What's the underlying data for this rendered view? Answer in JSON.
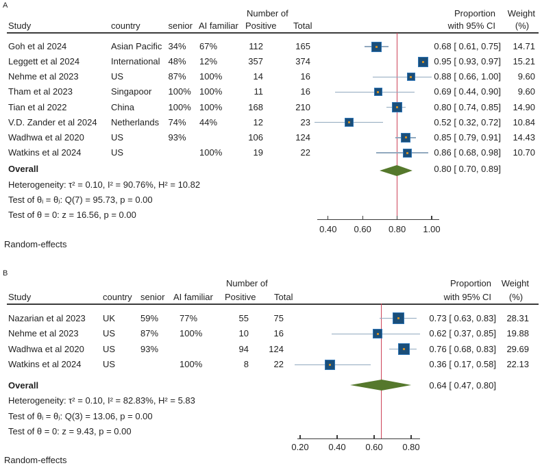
{
  "figure": {
    "panel_a_label": "A",
    "panel_b_label": "B"
  },
  "colors": {
    "marker_fill": "#1a4e79",
    "marker_border": "#2e75b6",
    "marker_dot": "#cc8f2b",
    "ci_line": "#90a8be",
    "ref_line": "#cc4257",
    "diamond": "#55782c",
    "rule": "#3a3a3a",
    "text": "#1f1f1f"
  },
  "chart_data": [
    {
      "type": "scatter",
      "panel": "A",
      "title": "",
      "xlabel": "",
      "ylabel": "",
      "columns": {
        "study": "Study",
        "country": "country",
        "senior": "senior",
        "ai_familiar": "AI familiar",
        "number_of": "Number of",
        "positive": "Positive",
        "total": "Total",
        "proportion_line1": "Proportion",
        "proportion_line2": "with 95% CI",
        "weight_line1": "Weight",
        "weight_line2": "(%)"
      },
      "studies": [
        {
          "study": "Goh et al 2024",
          "country": "Asian Pacific",
          "senior": "34%",
          "ai_familiar": "67%",
          "positive": 112,
          "total": 165,
          "estimate": 0.68,
          "ci_low": 0.61,
          "ci_high": 0.75,
          "ci_label": "0.68 [ 0.61, 0.75]",
          "weight": "14.71",
          "marker_size": 15
        },
        {
          "study": "Leggett et al 2024",
          "country": "International",
          "senior": "48%",
          "ai_familiar": "12%",
          "positive": 357,
          "total": 374,
          "estimate": 0.95,
          "ci_low": 0.93,
          "ci_high": 0.97,
          "ci_label": "0.95 [ 0.93, 0.97]",
          "weight": "15.21",
          "marker_size": 15
        },
        {
          "study": "Nehme et al 2023",
          "country": "US",
          "senior": "87%",
          "ai_familiar": "100%",
          "positive": 14,
          "total": 16,
          "estimate": 0.88,
          "ci_low": 0.66,
          "ci_high": 1.0,
          "ci_label": "0.88 [ 0.66, 1.00]",
          "weight": "9.60",
          "marker_size": 12
        },
        {
          "study": "Tham et al 2023",
          "country": "Singapoor",
          "senior": "100%",
          "ai_familiar": "100%",
          "positive": 11,
          "total": 16,
          "estimate": 0.69,
          "ci_low": 0.44,
          "ci_high": 0.9,
          "ci_label": "0.69 [ 0.44, 0.90]",
          "weight": "9.60",
          "marker_size": 12
        },
        {
          "study": "Tian et al 2022",
          "country": "China",
          "senior": "100%",
          "ai_familiar": "100%",
          "positive": 168,
          "total": 210,
          "estimate": 0.8,
          "ci_low": 0.74,
          "ci_high": 0.85,
          "ci_label": "0.80 [ 0.74, 0.85]",
          "weight": "14.90",
          "marker_size": 15
        },
        {
          "study": "V.D. Zander et al 2024",
          "country": "Netherlands",
          "senior": "74%",
          "ai_familiar": "44%",
          "positive": 12,
          "total": 23,
          "estimate": 0.52,
          "ci_low": 0.32,
          "ci_high": 0.72,
          "ci_label": "0.52 [ 0.32, 0.72]",
          "weight": "10.84",
          "marker_size": 13
        },
        {
          "study": "Wadhwa et al 2020",
          "country": "US",
          "senior": "93%",
          "ai_familiar": "",
          "positive": 106,
          "total": 124,
          "estimate": 0.85,
          "ci_low": 0.79,
          "ci_high": 0.91,
          "ci_label": "0.85 [ 0.79, 0.91]",
          "weight": "14.43",
          "marker_size": 14
        },
        {
          "study": "Watkins et al 2024",
          "country": "US",
          "senior": "",
          "ai_familiar": "100%",
          "positive": 19,
          "total": 22,
          "estimate": 0.86,
          "ci_low": 0.68,
          "ci_high": 0.98,
          "ci_label": "0.86 [ 0.68, 0.98]",
          "weight": "10.70",
          "marker_size": 13
        }
      ],
      "overall": {
        "label": "Overall",
        "estimate": 0.8,
        "ci_low": 0.7,
        "ci_high": 0.89,
        "ci_label": "0.80 [ 0.70, 0.89]"
      },
      "stats": [
        "Heterogeneity: τ² = 0.10, I² = 90.76%, H² = 10.82",
        "Test of θᵢ = θⱼ: Q(7) = 95.73, p = 0.00",
        "Test of θ = 0: z = 16.56, p = 0.00"
      ],
      "footer": "Random-effects",
      "axis": {
        "xmin": 0.4,
        "xmax": 1.0,
        "tick_values": [
          0.4,
          0.6,
          0.8,
          1.0
        ],
        "tick_labels": [
          "0.40",
          "0.60",
          "0.80",
          "1.00"
        ],
        "ref_line": 0.8
      }
    },
    {
      "type": "scatter",
      "panel": "B",
      "title": "",
      "xlabel": "",
      "ylabel": "",
      "columns": {
        "study": "Study",
        "country": "country",
        "senior": "senior",
        "ai_familiar": "AI familiar",
        "number_of": "Number of",
        "positive": "Positive",
        "total": "Total",
        "proportion_line1": "Proportion",
        "proportion_line2": "with 95% CI",
        "weight_line1": "Weight",
        "weight_line2": "(%)"
      },
      "studies": [
        {
          "study": "Nazarian et al 2023",
          "country": "UK",
          "senior": "59%",
          "ai_familiar": "77%",
          "positive": 55,
          "total": 75,
          "estimate": 0.73,
          "ci_low": 0.63,
          "ci_high": 0.83,
          "ci_label": "0.73 [ 0.63, 0.83]",
          "weight": "28.31",
          "marker_size": 17
        },
        {
          "study": "Nehme et al 2023",
          "country": "US",
          "senior": "87%",
          "ai_familiar": "100%",
          "positive": 10,
          "total": 16,
          "estimate": 0.62,
          "ci_low": 0.37,
          "ci_high": 0.85,
          "ci_label": "0.62 [ 0.37, 0.85]",
          "weight": "19.88",
          "marker_size": 14
        },
        {
          "study": "Wadhwa et al 2020",
          "country": "US",
          "senior": "93%",
          "ai_familiar": "",
          "positive": 94,
          "total": 124,
          "estimate": 0.76,
          "ci_low": 0.68,
          "ci_high": 0.83,
          "ci_label": "0.76 [ 0.68, 0.83]",
          "weight": "29.69",
          "marker_size": 17
        },
        {
          "study": "Watkins et al 2024",
          "country": "US",
          "senior": "",
          "ai_familiar": "100%",
          "positive": 8,
          "total": 22,
          "estimate": 0.36,
          "ci_low": 0.17,
          "ci_high": 0.58,
          "ci_label": "0.36 [ 0.17, 0.58]",
          "weight": "22.13",
          "marker_size": 15
        }
      ],
      "overall": {
        "label": "Overall",
        "estimate": 0.64,
        "ci_low": 0.47,
        "ci_high": 0.8,
        "ci_label": "0.64 [ 0.47, 0.80]"
      },
      "stats": [
        "Heterogeneity: τ² = 0.10, I² = 82.83%, H² = 5.83",
        "Test of θᵢ = θⱼ: Q(3) = 13.06, p = 0.00",
        "Test of θ = 0: z = 9.43, p = 0.00"
      ],
      "footer": "Random-effects",
      "axis": {
        "xmin": 0.2,
        "xmax": 0.8,
        "tick_values": [
          0.2,
          0.4,
          0.6,
          0.8
        ],
        "tick_labels": [
          "0.20",
          "0.40",
          "0.60",
          "0.80"
        ],
        "ref_line": 0.64
      }
    }
  ]
}
